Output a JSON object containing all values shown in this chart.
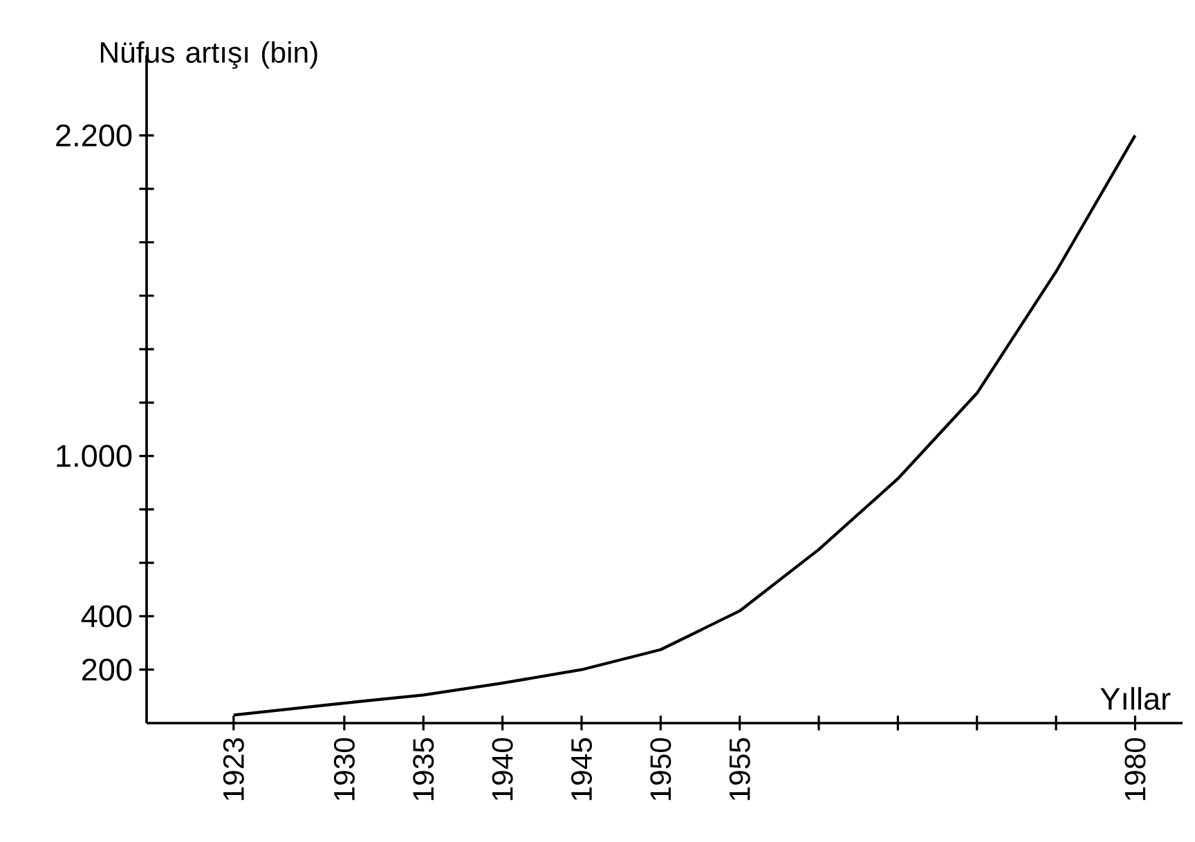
{
  "chart_data": {
    "type": "line",
    "ylabel": "Nüfus artışı (bin)",
    "xlabel": "Yıllar",
    "x": [
      1923,
      1930,
      1935,
      1940,
      1945,
      1950,
      1955,
      1960,
      1965,
      1970,
      1975,
      1980
    ],
    "values": [
      30,
      75,
      105,
      150,
      200,
      275,
      420,
      650,
      915,
      1235,
      1690,
      2200
    ],
    "color": "#000000",
    "xlim": [
      1917.5,
      1983
    ],
    "xticks": [
      1923,
      1930,
      1935,
      1940,
      1945,
      1950,
      1955,
      {
        "value": 1960,
        "label": null
      },
      {
        "value": 1965,
        "label": null
      },
      {
        "value": 1970,
        "label": null
      },
      {
        "value": 1975,
        "label": null
      },
      1980
    ],
    "ylim": [
      0,
      2500
    ],
    "yticks": [
      200,
      400,
      {
        "value": 600,
        "label": null
      },
      {
        "value": 800,
        "label": null
      },
      {
        "value": 1000,
        "label": "1.000"
      },
      {
        "value": 1200,
        "label": null
      },
      {
        "value": 1400,
        "label": null
      },
      {
        "value": 1600,
        "label": null
      },
      {
        "value": 1800,
        "label": null
      },
      {
        "value": 2000,
        "label": null
      },
      {
        "value": 2200,
        "label": "2.200"
      }
    ],
    "grid": false,
    "marker": "none",
    "line_style": "solid"
  }
}
